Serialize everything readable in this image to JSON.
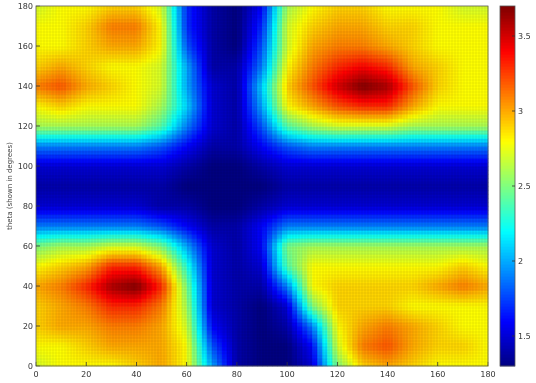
{
  "chart_data": {
    "type": "heatmap",
    "title": "",
    "xlabel": "",
    "ylabel": "theta (shown in degrees)",
    "xlim": [
      0,
      180
    ],
    "ylim": [
      0,
      180
    ],
    "x_ticks": [
      0,
      20,
      40,
      60,
      80,
      100,
      120,
      140,
      160,
      180
    ],
    "y_ticks": [
      0,
      20,
      40,
      60,
      80,
      100,
      120,
      140,
      160,
      180
    ],
    "x_tick_labels": [
      "0",
      "20",
      "40",
      "60",
      "80",
      "100",
      "120",
      "140",
      "160",
      "180"
    ],
    "y_tick_labels": [
      "0",
      "20",
      "40",
      "60",
      "80",
      "100",
      "120",
      "140",
      "160",
      "180"
    ],
    "colorbar": {
      "colormap": "jet",
      "min": 1.3,
      "max": 3.7,
      "ticks": [
        1.5,
        2,
        2.5,
        3,
        3.5
      ],
      "tick_labels": [
        "1.5",
        "2",
        "2.5",
        "3",
        "3.5"
      ]
    },
    "grid_x": [
      0,
      10,
      20,
      30,
      40,
      50,
      60,
      70,
      80,
      90,
      100,
      110,
      120,
      130,
      140,
      150,
      160,
      170,
      180
    ],
    "grid_y": [
      0,
      10,
      20,
      30,
      40,
      50,
      60,
      70,
      80,
      90,
      100,
      110,
      120,
      130,
      140,
      150,
      160,
      170,
      180
    ],
    "z": [
      [
        2.7,
        2.8,
        2.8,
        2.8,
        2.9,
        3.0,
        2.8,
        2.0,
        1.4,
        1.3,
        1.3,
        1.5,
        2.5,
        2.9,
        3.0,
        2.9,
        2.8,
        2.8,
        2.8
      ],
      [
        2.8,
        2.8,
        2.9,
        3.0,
        3.0,
        3.0,
        2.8,
        1.8,
        1.4,
        1.3,
        1.3,
        1.6,
        2.7,
        3.1,
        3.2,
        3.0,
        2.9,
        2.9,
        2.8
      ],
      [
        2.9,
        3.0,
        3.0,
        3.1,
        3.1,
        3.0,
        2.7,
        1.6,
        1.4,
        1.3,
        1.4,
        1.9,
        2.8,
        3.0,
        3.1,
        3.0,
        2.9,
        2.8,
        2.8
      ],
      [
        2.9,
        3.0,
        3.1,
        3.3,
        3.3,
        3.1,
        2.6,
        1.5,
        1.4,
        1.3,
        1.5,
        2.5,
        2.9,
        2.9,
        2.9,
        2.8,
        2.8,
        2.8,
        2.8
      ],
      [
        3.0,
        3.1,
        3.3,
        3.6,
        3.7,
        3.3,
        2.5,
        1.5,
        1.4,
        1.4,
        1.9,
        2.8,
        2.9,
        2.9,
        2.9,
        2.9,
        3.0,
        3.1,
        3.0
      ],
      [
        2.8,
        2.9,
        3.0,
        3.3,
        3.3,
        3.0,
        2.3,
        1.5,
        1.4,
        1.5,
        2.4,
        2.8,
        2.8,
        2.8,
        2.8,
        2.8,
        2.8,
        2.9,
        2.8
      ],
      [
        2.5,
        2.6,
        2.6,
        2.7,
        2.7,
        2.5,
        2.0,
        1.5,
        1.4,
        1.6,
        2.5,
        2.6,
        2.6,
        2.6,
        2.6,
        2.6,
        2.6,
        2.6,
        2.6
      ],
      [
        1.9,
        1.9,
        1.9,
        1.9,
        1.9,
        1.8,
        1.6,
        1.4,
        1.4,
        1.6,
        1.9,
        1.9,
        1.9,
        1.9,
        1.9,
        1.9,
        1.9,
        1.9,
        1.9
      ],
      [
        1.5,
        1.5,
        1.5,
        1.5,
        1.5,
        1.4,
        1.4,
        1.3,
        1.3,
        1.4,
        1.5,
        1.5,
        1.5,
        1.5,
        1.5,
        1.5,
        1.5,
        1.5,
        1.5
      ],
      [
        1.4,
        1.4,
        1.4,
        1.4,
        1.4,
        1.4,
        1.3,
        1.3,
        1.3,
        1.3,
        1.4,
        1.4,
        1.4,
        1.4,
        1.4,
        1.4,
        1.4,
        1.4,
        1.4
      ],
      [
        1.5,
        1.5,
        1.5,
        1.5,
        1.5,
        1.5,
        1.4,
        1.3,
        1.3,
        1.4,
        1.5,
        1.5,
        1.5,
        1.5,
        1.5,
        1.5,
        1.5,
        1.5,
        1.5
      ],
      [
        1.9,
        1.9,
        1.9,
        1.9,
        1.9,
        1.8,
        1.6,
        1.4,
        1.4,
        1.6,
        1.8,
        1.9,
        1.9,
        1.9,
        1.9,
        1.9,
        1.9,
        1.9,
        1.9
      ],
      [
        2.6,
        2.6,
        2.6,
        2.6,
        2.6,
        2.4,
        1.9,
        1.5,
        1.4,
        1.8,
        2.4,
        2.6,
        2.7,
        2.7,
        2.7,
        2.6,
        2.6,
        2.6,
        2.6
      ],
      [
        2.8,
        2.9,
        2.8,
        2.8,
        2.8,
        2.6,
        2.1,
        1.5,
        1.4,
        2.0,
        2.8,
        3.0,
        3.2,
        3.3,
        3.3,
        3.0,
        2.8,
        2.8,
        2.8
      ],
      [
        3.1,
        3.2,
        3.0,
        2.9,
        2.8,
        2.7,
        2.0,
        1.5,
        1.4,
        2.1,
        2.9,
        3.2,
        3.5,
        3.7,
        3.6,
        3.2,
        2.9,
        2.8,
        2.8
      ],
      [
        2.9,
        3.0,
        2.9,
        2.8,
        2.8,
        2.7,
        2.0,
        1.4,
        1.4,
        1.9,
        2.8,
        3.1,
        3.3,
        3.4,
        3.3,
        3.0,
        2.9,
        2.8,
        2.8
      ],
      [
        2.8,
        2.8,
        2.9,
        3.0,
        3.0,
        2.8,
        1.8,
        1.4,
        1.3,
        1.8,
        2.7,
        3.0,
        3.1,
        3.1,
        3.0,
        2.9,
        2.8,
        2.8,
        2.8
      ],
      [
        2.8,
        2.8,
        2.9,
        3.1,
        3.1,
        2.8,
        1.7,
        1.4,
        1.3,
        1.7,
        2.7,
        2.9,
        3.0,
        3.0,
        2.9,
        2.9,
        2.8,
        2.8,
        2.8
      ],
      [
        2.7,
        2.8,
        2.8,
        2.9,
        2.9,
        2.7,
        1.7,
        1.4,
        1.3,
        1.6,
        2.6,
        2.8,
        2.9,
        2.9,
        2.8,
        2.8,
        2.8,
        2.7,
        2.7
      ]
    ]
  }
}
